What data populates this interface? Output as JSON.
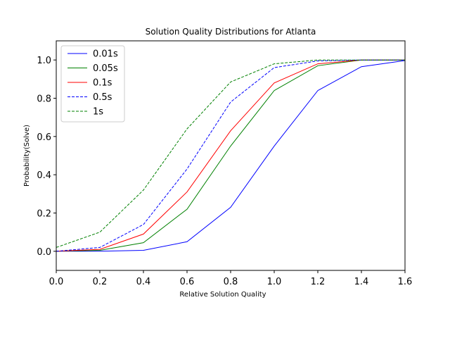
{
  "chart_data": {
    "type": "line",
    "title": "Solution Quality Distributions for Atlanta",
    "xlabel": "Relative Solution Quality",
    "ylabel": "Probability(Solve)",
    "xlim": [
      0.0,
      1.6
    ],
    "ylim": [
      -0.1,
      1.1
    ],
    "xticks": [
      "0.0",
      "0.2",
      "0.4",
      "0.6",
      "0.8",
      "1.0",
      "1.2",
      "1.4",
      "1.6"
    ],
    "yticks": [
      "0.0",
      "0.2",
      "0.4",
      "0.6",
      "0.8",
      "1.0"
    ],
    "grid": false,
    "legend_position": "top-left",
    "x": [
      0.0,
      0.2,
      0.4,
      0.6,
      0.8,
      1.0,
      1.2,
      1.4,
      1.6
    ],
    "series": [
      {
        "name": "0.01s",
        "color": "#0000ff",
        "style": "solid",
        "values": [
          0.0,
          0.0,
          0.005,
          0.05,
          0.23,
          0.55,
          0.84,
          0.965,
          0.997
        ]
      },
      {
        "name": "0.05s",
        "color": "#008000",
        "style": "solid",
        "values": [
          0.0,
          0.005,
          0.045,
          0.22,
          0.55,
          0.84,
          0.97,
          1.0,
          1.0
        ]
      },
      {
        "name": "0.1s",
        "color": "#ff0000",
        "style": "solid",
        "values": [
          0.0,
          0.01,
          0.09,
          0.31,
          0.63,
          0.88,
          0.98,
          1.0,
          1.0
        ]
      },
      {
        "name": "0.5s",
        "color": "#0000ff",
        "style": "dashed",
        "values": [
          0.0,
          0.02,
          0.14,
          0.43,
          0.78,
          0.96,
          0.995,
          1.0,
          1.0
        ]
      },
      {
        "name": "1s",
        "color": "#008000",
        "style": "dashed",
        "values": [
          0.02,
          0.1,
          0.32,
          0.64,
          0.885,
          0.98,
          1.0,
          1.0,
          1.0
        ]
      }
    ]
  }
}
